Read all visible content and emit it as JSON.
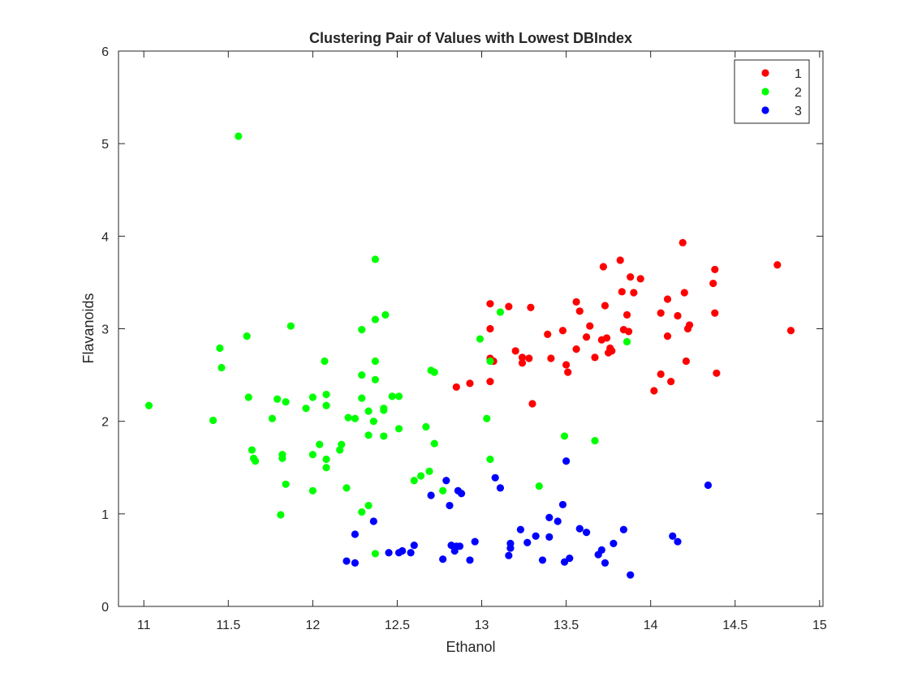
{
  "chart_data": {
    "type": "scatter",
    "title": "Clustering Pair of Values with Lowest DBIndex",
    "xlabel": "Ethanol",
    "ylabel": "Flavanoids",
    "xlim": [
      10.85,
      15.02
    ],
    "ylim": [
      0,
      6
    ],
    "xticks": [
      "11",
      "11.5",
      "12",
      "12.5",
      "13",
      "13.5",
      "14",
      "14.5",
      "15"
    ],
    "yticks": [
      "0",
      "1",
      "2",
      "3",
      "4",
      "5",
      "6"
    ],
    "grid": false,
    "legend": "top-right",
    "series": [
      {
        "name": "1",
        "color": "#ff0000",
        "points": [
          [
            13.05,
            3.27
          ],
          [
            13.16,
            3.24
          ],
          [
            13.29,
            3.23
          ],
          [
            13.05,
            3.0
          ],
          [
            13.05,
            2.68
          ],
          [
            13.07,
            2.65
          ],
          [
            13.05,
            2.43
          ],
          [
            13.2,
            2.76
          ],
          [
            13.24,
            2.69
          ],
          [
            13.24,
            2.63
          ],
          [
            13.28,
            2.68
          ],
          [
            13.3,
            2.19
          ],
          [
            12.85,
            2.37
          ],
          [
            12.93,
            2.41
          ],
          [
            13.39,
            2.94
          ],
          [
            13.41,
            2.68
          ],
          [
            13.48,
            2.98
          ],
          [
            13.5,
            2.61
          ],
          [
            13.51,
            2.53
          ],
          [
            13.56,
            3.29
          ],
          [
            13.56,
            2.78
          ],
          [
            13.58,
            3.19
          ],
          [
            13.62,
            2.91
          ],
          [
            13.64,
            3.03
          ],
          [
            13.67,
            2.69
          ],
          [
            13.71,
            2.88
          ],
          [
            13.72,
            3.67
          ],
          [
            13.73,
            3.25
          ],
          [
            13.74,
            2.9
          ],
          [
            13.75,
            2.74
          ],
          [
            13.76,
            2.79
          ],
          [
            13.77,
            2.76
          ],
          [
            13.82,
            3.74
          ],
          [
            13.83,
            3.4
          ],
          [
            13.84,
            2.99
          ],
          [
            13.86,
            3.15
          ],
          [
            13.87,
            2.97
          ],
          [
            13.88,
            3.56
          ],
          [
            13.9,
            3.39
          ],
          [
            13.94,
            3.54
          ],
          [
            14.02,
            2.33
          ],
          [
            14.06,
            3.17
          ],
          [
            14.06,
            2.51
          ],
          [
            14.1,
            3.32
          ],
          [
            14.1,
            2.92
          ],
          [
            14.12,
            2.43
          ],
          [
            14.16,
            3.14
          ],
          [
            14.19,
            3.93
          ],
          [
            14.2,
            3.39
          ],
          [
            14.21,
            2.65
          ],
          [
            14.22,
            3.0
          ],
          [
            14.23,
            3.04
          ],
          [
            14.37,
            3.49
          ],
          [
            14.38,
            3.64
          ],
          [
            14.38,
            3.17
          ],
          [
            14.39,
            2.52
          ],
          [
            14.75,
            3.69
          ],
          [
            14.83,
            2.98
          ]
        ]
      },
      {
        "name": "2",
        "color": "#00ff00",
        "points": [
          [
            11.03,
            2.17
          ],
          [
            11.41,
            2.01
          ],
          [
            11.45,
            2.79
          ],
          [
            11.46,
            2.58
          ],
          [
            11.56,
            5.08
          ],
          [
            11.61,
            2.92
          ],
          [
            11.62,
            2.26
          ],
          [
            11.64,
            1.69
          ],
          [
            11.65,
            1.6
          ],
          [
            11.66,
            1.57
          ],
          [
            11.76,
            2.03
          ],
          [
            11.79,
            2.24
          ],
          [
            11.81,
            0.99
          ],
          [
            11.82,
            1.64
          ],
          [
            11.82,
            1.6
          ],
          [
            11.84,
            2.21
          ],
          [
            11.84,
            1.32
          ],
          [
            11.87,
            3.03
          ],
          [
            11.96,
            2.14
          ],
          [
            12.0,
            2.26
          ],
          [
            12.0,
            1.64
          ],
          [
            12.0,
            1.25
          ],
          [
            12.04,
            1.75
          ],
          [
            12.07,
            2.65
          ],
          [
            12.08,
            2.29
          ],
          [
            12.08,
            2.17
          ],
          [
            12.08,
            1.59
          ],
          [
            12.08,
            1.5
          ],
          [
            12.16,
            1.69
          ],
          [
            12.17,
            1.75
          ],
          [
            12.2,
            1.28
          ],
          [
            12.21,
            2.04
          ],
          [
            12.25,
            2.03
          ],
          [
            12.29,
            2.99
          ],
          [
            12.29,
            2.5
          ],
          [
            12.29,
            2.25
          ],
          [
            12.29,
            1.02
          ],
          [
            12.33,
            2.11
          ],
          [
            12.33,
            1.85
          ],
          [
            12.33,
            1.09
          ],
          [
            12.36,
            2.0
          ],
          [
            12.37,
            3.75
          ],
          [
            12.37,
            3.1
          ],
          [
            12.37,
            2.65
          ],
          [
            12.37,
            2.45
          ],
          [
            12.37,
            0.57
          ],
          [
            12.42,
            2.14
          ],
          [
            12.42,
            2.12
          ],
          [
            12.42,
            1.84
          ],
          [
            12.43,
            3.15
          ],
          [
            12.47,
            2.27
          ],
          [
            12.51,
            2.27
          ],
          [
            12.51,
            1.92
          ],
          [
            12.6,
            1.36
          ],
          [
            12.64,
            1.41
          ],
          [
            12.67,
            1.94
          ],
          [
            12.69,
            1.46
          ],
          [
            12.7,
            2.55
          ],
          [
            12.72,
            2.53
          ],
          [
            12.72,
            1.76
          ],
          [
            12.77,
            1.25
          ],
          [
            12.99,
            2.89
          ],
          [
            13.03,
            2.03
          ],
          [
            13.05,
            2.65
          ],
          [
            13.05,
            1.59
          ],
          [
            13.11,
            3.18
          ],
          [
            13.34,
            1.3
          ],
          [
            13.49,
            1.84
          ],
          [
            13.67,
            1.79
          ],
          [
            13.86,
            2.86
          ]
        ]
      },
      {
        "name": "3",
        "color": "#0000ff",
        "points": [
          [
            12.2,
            0.49
          ],
          [
            12.25,
            0.47
          ],
          [
            12.25,
            0.78
          ],
          [
            12.36,
            0.92
          ],
          [
            12.45,
            0.58
          ],
          [
            12.51,
            0.58
          ],
          [
            12.53,
            0.6
          ],
          [
            12.58,
            0.58
          ],
          [
            12.6,
            0.66
          ],
          [
            12.7,
            1.2
          ],
          [
            12.77,
            0.51
          ],
          [
            12.79,
            1.36
          ],
          [
            12.81,
            1.09
          ],
          [
            12.82,
            0.66
          ],
          [
            12.84,
            0.6
          ],
          [
            12.85,
            0.65
          ],
          [
            12.86,
            1.25
          ],
          [
            12.87,
            0.65
          ],
          [
            12.88,
            1.22
          ],
          [
            12.93,
            0.5
          ],
          [
            12.96,
            0.7
          ],
          [
            13.08,
            1.39
          ],
          [
            13.11,
            1.28
          ],
          [
            13.16,
            0.55
          ],
          [
            13.17,
            0.63
          ],
          [
            13.17,
            0.68
          ],
          [
            13.23,
            0.83
          ],
          [
            13.27,
            0.69
          ],
          [
            13.32,
            0.76
          ],
          [
            13.36,
            0.5
          ],
          [
            13.4,
            0.96
          ],
          [
            13.4,
            0.75
          ],
          [
            13.45,
            0.92
          ],
          [
            13.48,
            1.1
          ],
          [
            13.49,
            0.48
          ],
          [
            13.5,
            1.57
          ],
          [
            13.52,
            0.52
          ],
          [
            13.58,
            0.84
          ],
          [
            13.62,
            0.8
          ],
          [
            13.69,
            0.56
          ],
          [
            13.71,
            0.61
          ],
          [
            13.73,
            0.47
          ],
          [
            13.78,
            0.68
          ],
          [
            13.84,
            0.83
          ],
          [
            13.88,
            0.34
          ],
          [
            14.13,
            0.76
          ],
          [
            14.16,
            0.7
          ],
          [
            14.34,
            1.31
          ]
        ]
      }
    ]
  }
}
